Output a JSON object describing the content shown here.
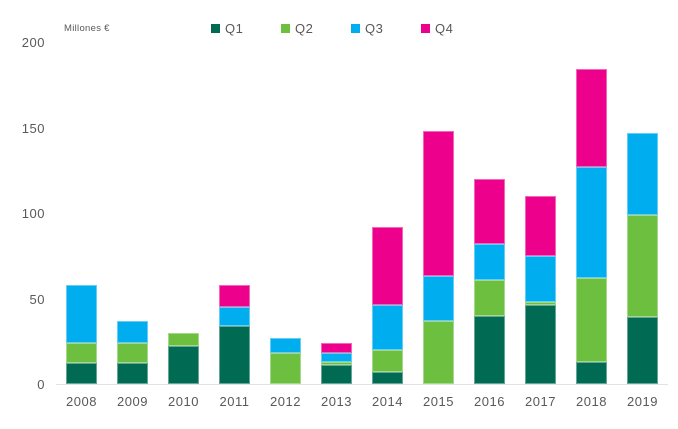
{
  "header": {
    "units_label": "Millones €"
  },
  "colors": {
    "q1": "#006b52",
    "q2": "#6cbf3f",
    "q3": "#00aeef",
    "q4": "#ec008c",
    "text": "#595959",
    "axis_line": "#e2e2e2"
  },
  "chart_data": {
    "type": "bar",
    "stacked": true,
    "title": "",
    "ylabel": "Millones €",
    "xlabel": "",
    "ylim": [
      0,
      200
    ],
    "yticks": [
      0,
      50,
      100,
      150,
      200
    ],
    "grid": false,
    "legend_position": "top",
    "categories": [
      "2008",
      "2009",
      "2010",
      "2011",
      "2012",
      "2013",
      "2014",
      "2015",
      "2016",
      "2017",
      "2018",
      "2019"
    ],
    "series": [
      {
        "name": "Q1",
        "color": "#006b52",
        "values": [
          12,
          12,
          22,
          34,
          0,
          11,
          7,
          0,
          40,
          46,
          13,
          39
        ]
      },
      {
        "name": "Q2",
        "color": "#6cbf3f",
        "values": [
          12,
          12,
          8,
          0,
          18,
          2,
          13,
          37,
          21,
          2,
          49,
          60
        ]
      },
      {
        "name": "Q3",
        "color": "#00aeef",
        "values": [
          34,
          13,
          0,
          11,
          9,
          5,
          26,
          26,
          21,
          27,
          65,
          48
        ]
      },
      {
        "name": "Q4",
        "color": "#ec008c",
        "values": [
          0,
          0,
          0,
          13,
          0,
          6,
          46,
          85,
          38,
          35,
          57,
          0
        ]
      }
    ],
    "totals": [
      58,
      37,
      30,
      58,
      27,
      24,
      92,
      148,
      120,
      110,
      184,
      147
    ]
  }
}
